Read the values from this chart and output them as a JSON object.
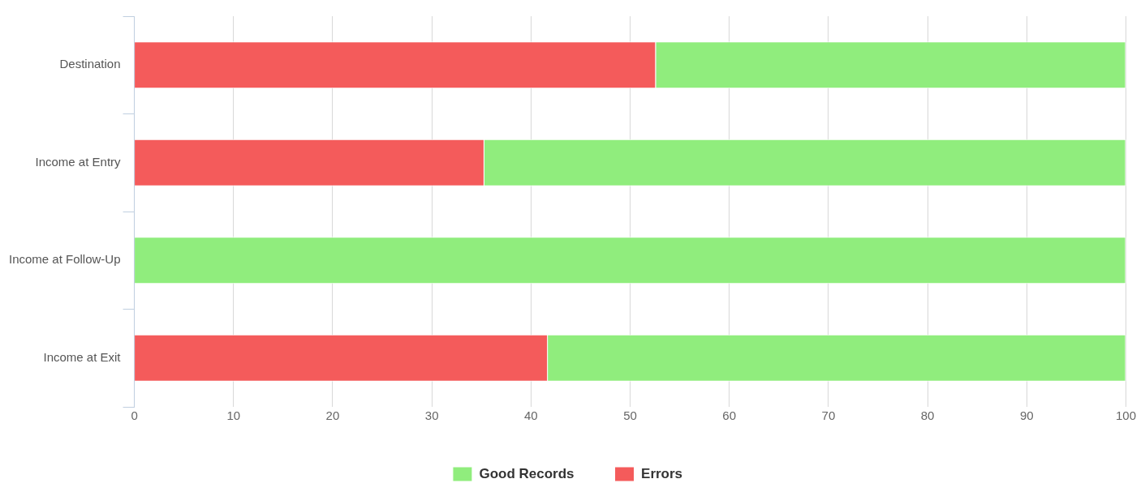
{
  "chart_data": {
    "type": "bar",
    "orientation": "horizontal",
    "stacked": true,
    "categories": [
      "Destination",
      "Income at Entry",
      "Income at Follow-Up",
      "Income at Exit"
    ],
    "series": [
      {
        "name": "Errors",
        "color": "#f45b5b",
        "values": [
          52.6,
          35.3,
          0,
          41.7
        ]
      },
      {
        "name": "Good Records",
        "color": "#90ed7d",
        "values": [
          47.4,
          64.7,
          100,
          58.3
        ]
      }
    ],
    "xlim": [
      0,
      100
    ],
    "xticks": [
      0,
      10,
      20,
      30,
      40,
      50,
      60,
      70,
      80,
      90,
      100
    ],
    "grid": "x",
    "legend": "bottom"
  }
}
